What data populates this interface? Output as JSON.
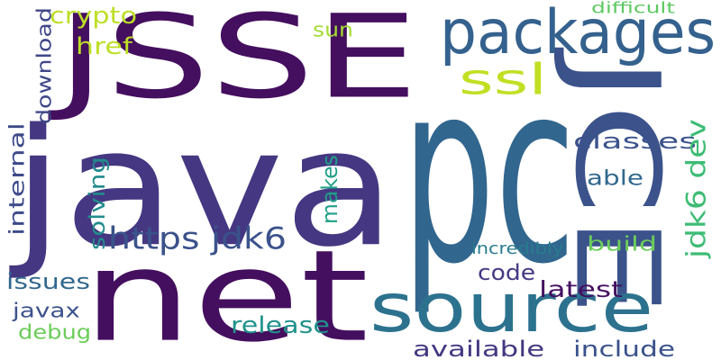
{
  "words": [
    {
      "text": "pc",
      "color": "#31668e",
      "rotate": 0
    },
    {
      "text": "java",
      "color": "#453781",
      "rotate": 0
    },
    {
      "text": "JSSE",
      "color": "#440f5f",
      "rotate": 0
    },
    {
      "text": "net",
      "color": "#440f5f",
      "rotate": 0
    },
    {
      "text": "JCE",
      "color": "#3b528b",
      "rotate": 90
    },
    {
      "text": "source",
      "color": "#2c728e",
      "rotate": 0
    },
    {
      "text": "packages",
      "color": "#34618d",
      "rotate": 0
    },
    {
      "text": "ssl",
      "color": "#c2df23",
      "rotate": 0
    },
    {
      "text": "https jdk6",
      "color": "#3b528b",
      "rotate": 0
    },
    {
      "text": "crypto",
      "color": "#bddf26",
      "rotate": 0
    },
    {
      "text": "href",
      "color": "#bddf26",
      "rotate": 0
    },
    {
      "text": "sun",
      "color": "#a5db36",
      "rotate": 0
    },
    {
      "text": "download",
      "color": "#3f4788",
      "rotate": -90
    },
    {
      "text": "difficult",
      "color": "#5ec962",
      "rotate": 0
    },
    {
      "text": "classes",
      "color": "#3b528b",
      "rotate": 0
    },
    {
      "text": "able",
      "color": "#31688e",
      "rotate": 0
    },
    {
      "text": "jdk6 dev",
      "color": "#3dbc74",
      "rotate": -90
    },
    {
      "text": "makes",
      "color": "#1fa088",
      "rotate": -90
    },
    {
      "text": "solving",
      "color": "#228c8d",
      "rotate": -90
    },
    {
      "text": "internal",
      "color": "#3e4a89",
      "rotate": -90
    },
    {
      "text": "build",
      "color": "#6ccd5a",
      "rotate": 0
    },
    {
      "text": "incredibly",
      "color": "#287c8e",
      "rotate": 0
    },
    {
      "text": "issues",
      "color": "#31688e",
      "rotate": 0
    },
    {
      "text": "code",
      "color": "#443a83",
      "rotate": 0
    },
    {
      "text": "latest",
      "color": "#440f5f",
      "rotate": 0
    },
    {
      "text": "javax",
      "color": "#3b528b",
      "rotate": 0
    },
    {
      "text": "debug",
      "color": "#6ccd5a",
      "rotate": 0
    },
    {
      "text": "release",
      "color": "#20928c",
      "rotate": 0
    },
    {
      "text": "available",
      "color": "#453781",
      "rotate": 0
    },
    {
      "text": "include",
      "color": "#3b528b",
      "rotate": 0
    }
  ]
}
